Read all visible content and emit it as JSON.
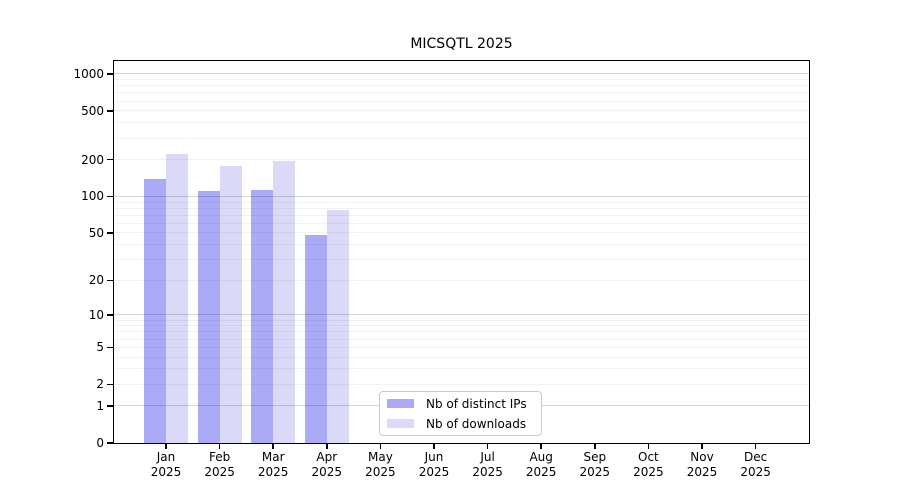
{
  "chart_data": {
    "type": "bar",
    "title": "MICSQTL 2025",
    "categories": [
      "Jan",
      "Feb",
      "Mar",
      "Apr",
      "May",
      "Jun",
      "Jul",
      "Aug",
      "Sep",
      "Oct",
      "Nov",
      "Dec"
    ],
    "year_label": "2025",
    "series": [
      {
        "name": "Nb of distinct IPs",
        "key": "distinct-ips",
        "color": "#aaaaf7",
        "values": [
          138,
          110,
          112,
          48,
          0,
          0,
          0,
          0,
          0,
          0,
          0,
          0
        ]
      },
      {
        "name": "Nb of downloads",
        "key": "downloads",
        "color": "#dadaf8",
        "values": [
          221,
          178,
          195,
          78,
          0,
          0,
          0,
          0,
          0,
          0,
          0,
          0
        ]
      }
    ],
    "y_axis": {
      "scale": "log10(value+1)",
      "tick_values": [
        0,
        1,
        2,
        5,
        10,
        20,
        50,
        100,
        200,
        500,
        1000
      ],
      "major_gridlines": [
        1,
        10,
        100,
        1000
      ],
      "minor_gridlines": [
        2,
        3,
        4,
        5,
        6,
        7,
        8,
        9,
        20,
        30,
        40,
        50,
        60,
        70,
        80,
        90,
        200,
        300,
        400,
        500,
        600,
        700,
        800,
        900
      ],
      "range": [
        0,
        1000
      ]
    },
    "xlabel": "",
    "ylabel": "",
    "grid": "horizontal",
    "legend_position": "inside-bottom-center-left"
  },
  "colors": {
    "major_grid": "rgba(0,0,0,0.16)",
    "minor_grid": "rgba(0,0,0,0.055)",
    "spine": "#000000",
    "background": "#ffffff"
  }
}
